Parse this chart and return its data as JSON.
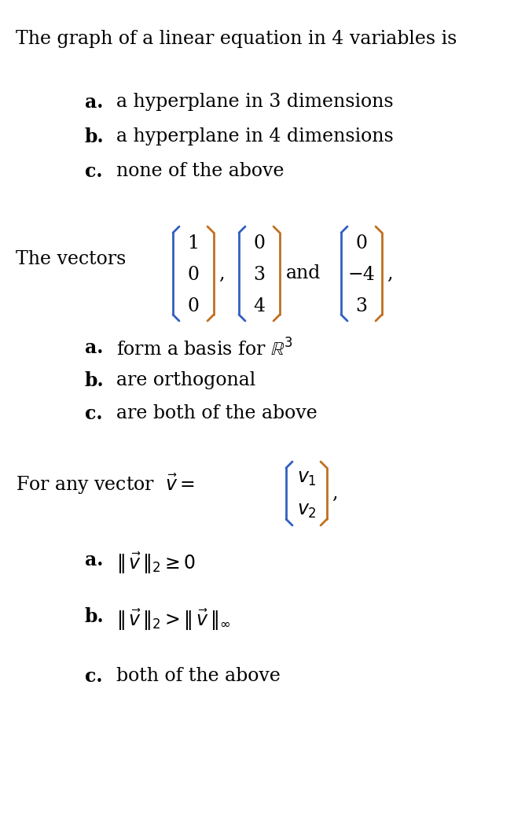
{
  "bg_color": "#ffffff",
  "figsize": [
    6.68,
    10.68
  ],
  "dpi": 100,
  "q1_title": "The graph of a linear equation in 4 variables is",
  "q1_options_labels": [
    "a.",
    "b.",
    "c."
  ],
  "q1_options_texts": [
    "a hyperplane in 3 dimensions",
    "a hyperplane in 4 dimensions",
    "none of the above"
  ],
  "q2_prefix": "The vectors",
  "q2_options_labels": [
    "a.",
    "b.",
    "c."
  ],
  "q2_options_texts": [
    "form a basis for $\\mathbb{R}^3$",
    "are orthogonal",
    "are both of the above"
  ],
  "q3_options_labels": [
    "a.",
    "b.",
    "c."
  ],
  "q3_options_texts": [
    "$\\|\\,\\vec{v}\\,\\|_2 \\geq 0$",
    "$\\|\\,\\vec{v}\\,\\|_2 > \\|\\,\\vec{v}\\,\\|_\\infty$",
    "both of the above"
  ],
  "title_fontsize": 17,
  "option_fontsize": 17,
  "small_fontsize": 15,
  "bracket_color_left": "#3060c0",
  "bracket_color_right": "#c07020",
  "bracket_lw": 2.0
}
